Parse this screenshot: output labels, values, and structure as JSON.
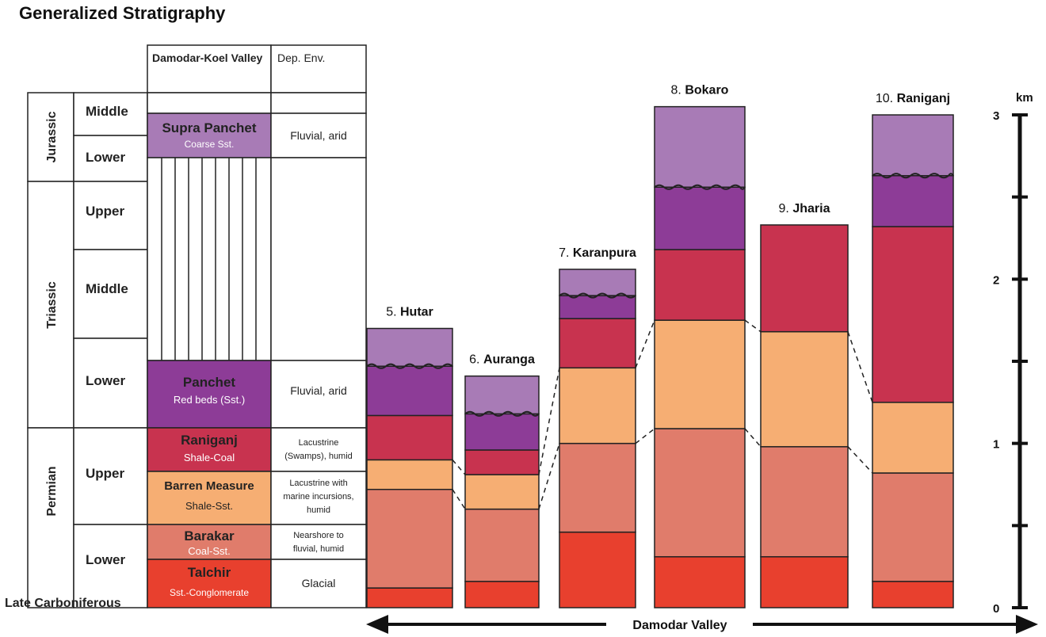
{
  "title": "Generalized Stratigraphy",
  "header": {
    "valley_col_title": "Damodar-Koel Valley",
    "dep_env_title": "Dep. Env."
  },
  "periods": [
    "Jurassic",
    "Triassic",
    "Permian"
  ],
  "epochs": [
    "Middle",
    "Lower",
    "Upper",
    "Middle",
    "Lower",
    "Upper",
    "Lower"
  ],
  "late_carboniferous": "Late Carboniferous",
  "units": [
    {
      "name": "Supra Panchet",
      "lith": "Coarse Sst.",
      "env": [
        "Fluvial, arid"
      ],
      "color": "#A87BB6"
    },
    {
      "name": "Panchet",
      "lith": "Red beds (Sst.)",
      "env": [
        "Fluvial, arid"
      ],
      "color": "#8D3C97"
    },
    {
      "name": "Raniganj",
      "lith": "Shale-Coal",
      "env": [
        "Lacustrine",
        "(Swamps), humid"
      ],
      "color": "#C8334F"
    },
    {
      "name": "Barren Measure",
      "lith": "Shale-Sst.",
      "env": [
        "Lacustrine with",
        "marine incursions,",
        "humid"
      ],
      "color": "#F6AE73"
    },
    {
      "name": "Barakar",
      "lith": "Coal-Sst.",
      "env": [
        "Nearshore to",
        "fluvial, humid"
      ],
      "color": "#E07C6B"
    },
    {
      "name": "Talchir",
      "lith": "Sst.-Conglomerate",
      "env": [
        "Glacial"
      ],
      "color": "#E8402E"
    }
  ],
  "columns": [
    {
      "label": "5. Hutar",
      "thicknesses_km": [
        0.12,
        0.6,
        0.18,
        0.27,
        0.3,
        0.23
      ]
    },
    {
      "label": "6. Auranga",
      "thicknesses_km": [
        0.16,
        0.44,
        0.21,
        0.15,
        0.22,
        0.23
      ]
    },
    {
      "label": "7. Karanpura",
      "thicknesses_km": [
        0.46,
        0.54,
        0.46,
        0.3,
        0.14,
        0.16
      ]
    },
    {
      "label": "8. Bokaro",
      "thicknesses_km": [
        0.31,
        0.78,
        0.66,
        0.43,
        0.38,
        0.49
      ]
    },
    {
      "label": "9. Jharia",
      "thicknesses_km": [
        0.31,
        0.67,
        0.7,
        0.65,
        0,
        0
      ]
    },
    {
      "label": "10. Raniganj",
      "thicknesses_km": [
        0.16,
        0.66,
        0.43,
        1.07,
        0.31,
        0.37
      ]
    }
  ],
  "scale": {
    "unit": "km",
    "max": 3,
    "tick_labels": [
      "0",
      "1",
      "2",
      "3"
    ]
  },
  "arrow_label": "Damodar Valley"
}
